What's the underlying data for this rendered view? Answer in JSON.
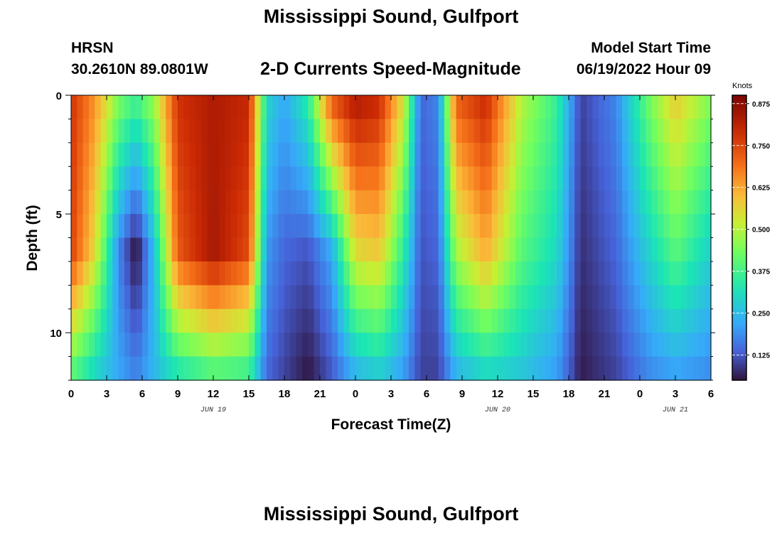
{
  "header": {
    "title": "Mississippi Sound, Gulfport",
    "station": "HRSN",
    "coordinates": "30.2610N  89.0801W",
    "subtitle": "2-D Currents Speed-Magnitude",
    "model_start_label": "Model Start Time",
    "model_start_value": "06/19/2022 Hour 09"
  },
  "footer": {
    "title": "Mississippi Sound, Gulfport"
  },
  "chart_data": {
    "type": "heatmap",
    "title": "2-D Currents Speed-Magnitude",
    "xlabel": "Forecast Time(Z)",
    "ylabel": "Depth (ft)",
    "colorbar_label": "Knots",
    "x_start": "06/19/2022 00Z",
    "x_range_hours": [
      0,
      54
    ],
    "y_range_ft": [
      0,
      12
    ],
    "y_inverted": true,
    "x_ticks": [
      "0",
      "3",
      "6",
      "9",
      "12",
      "15",
      "18",
      "21",
      "0",
      "3",
      "6",
      "9",
      "12",
      "15",
      "18",
      "21",
      "0",
      "3",
      "6"
    ],
    "day_labels": [
      {
        "label": "JUN 19",
        "hour": 12
      },
      {
        "label": "JUN 20",
        "hour": 36
      },
      {
        "label": "JUN 21",
        "hour": 51
      }
    ],
    "y_ticks": [
      {
        "value": 0,
        "label": "0"
      },
      {
        "value": 5,
        "label": "5"
      },
      {
        "value": 10,
        "label": "10"
      }
    ],
    "colorbar_range": [
      0.05,
      0.9
    ],
    "colorbar_ticks": [
      "0.125",
      "0.250",
      "0.375",
      "0.500",
      "0.625",
      "0.750",
      "0.875"
    ],
    "colorbar_tick_values": [
      0.125,
      0.25,
      0.375,
      0.5,
      0.625,
      0.75,
      0.875
    ],
    "colormap": "turbo",
    "grid": false,
    "depth_levels_ft": [
      0.5,
      1.5,
      2.5,
      3.5,
      4.5,
      5.5,
      6.5,
      7.5,
      8.5,
      9.5,
      10.5,
      11.5
    ],
    "time_keyframes": [
      {
        "hour": 0,
        "top": 0.78,
        "mid": 0.76,
        "bottom": 0.38
      },
      {
        "hour": 2,
        "top": 0.65,
        "mid": 0.55,
        "bottom": 0.28
      },
      {
        "hour": 4,
        "top": 0.45,
        "mid": 0.18,
        "bottom": 0.22
      },
      {
        "hour": 5.5,
        "top": 0.38,
        "mid": 0.04,
        "bottom": 0.18
      },
      {
        "hour": 7,
        "top": 0.48,
        "mid": 0.25,
        "bottom": 0.24
      },
      {
        "hour": 9,
        "top": 0.78,
        "mid": 0.72,
        "bottom": 0.3
      },
      {
        "hour": 12,
        "top": 0.83,
        "mid": 0.84,
        "bottom": 0.36
      },
      {
        "hour": 15,
        "top": 0.8,
        "mid": 0.74,
        "bottom": 0.34
      },
      {
        "hour": 16.5,
        "top": 0.3,
        "mid": 0.2,
        "bottom": 0.14
      },
      {
        "hour": 18,
        "top": 0.22,
        "mid": 0.14,
        "bottom": 0.1
      },
      {
        "hour": 20,
        "top": 0.35,
        "mid": 0.12,
        "bottom": 0.05
      },
      {
        "hour": 22,
        "top": 0.74,
        "mid": 0.22,
        "bottom": 0.12
      },
      {
        "hour": 24,
        "top": 0.84,
        "mid": 0.55,
        "bottom": 0.22
      },
      {
        "hour": 26,
        "top": 0.8,
        "mid": 0.58,
        "bottom": 0.26
      },
      {
        "hour": 28,
        "top": 0.55,
        "mid": 0.35,
        "bottom": 0.2
      },
      {
        "hour": 29.5,
        "top": 0.14,
        "mid": 0.12,
        "bottom": 0.1
      },
      {
        "hour": 31,
        "top": 0.18,
        "mid": 0.14,
        "bottom": 0.1
      },
      {
        "hour": 32.5,
        "top": 0.72,
        "mid": 0.48,
        "bottom": 0.22
      },
      {
        "hour": 35,
        "top": 0.8,
        "mid": 0.62,
        "bottom": 0.28
      },
      {
        "hour": 38,
        "top": 0.5,
        "mid": 0.4,
        "bottom": 0.26
      },
      {
        "hour": 41,
        "top": 0.36,
        "mid": 0.3,
        "bottom": 0.2
      },
      {
        "hour": 43,
        "top": 0.1,
        "mid": 0.08,
        "bottom": 0.06
      },
      {
        "hour": 46,
        "top": 0.18,
        "mid": 0.14,
        "bottom": 0.1
      },
      {
        "hour": 49,
        "top": 0.45,
        "mid": 0.3,
        "bottom": 0.18
      },
      {
        "hour": 51,
        "top": 0.58,
        "mid": 0.4,
        "bottom": 0.2
      },
      {
        "hour": 54,
        "top": 0.45,
        "mid": 0.28,
        "bottom": 0.18
      }
    ]
  }
}
